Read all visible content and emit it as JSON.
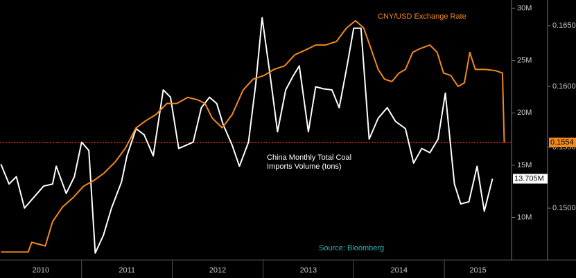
{
  "chart_data": {
    "type": "line",
    "source": "Source: Bloomberg",
    "xlim": [
      2010.1,
      2015.74
    ],
    "xticks": [
      2010,
      2011,
      2012,
      2013,
      2014,
      2015
    ],
    "ylim": [
      6,
      30.8
    ],
    "yticks": [
      {
        "value": 30,
        "label": "30M"
      },
      {
        "value": 25,
        "label": "25M"
      },
      {
        "value": 20,
        "label": "20M"
      },
      {
        "value": 15,
        "label": "15M"
      },
      {
        "value": 10,
        "label": "10M"
      }
    ],
    "y2lim": [
      0.1458,
      0.1671
    ],
    "y2ticks": [
      {
        "value": 0.165,
        "label": "0.1650"
      },
      {
        "value": 0.16,
        "label": "0.1600"
      },
      {
        "value": 0.155,
        "label": "0.1550"
      },
      {
        "value": 0.15,
        "label": "0.1500"
      }
    ],
    "series": [
      {
        "name": "China Monthly Total Coal Imports Volume (tons)",
        "color": "#ffffff",
        "axis": "y",
        "x": [
          2010.11,
          2010.2,
          2010.28,
          2010.37,
          2010.49,
          2010.58,
          2010.68,
          2010.72,
          2010.83,
          2010.92,
          2011.0,
          2011.08,
          2011.15,
          2011.24,
          2011.33,
          2011.44,
          2011.5,
          2011.6,
          2011.69,
          2011.79,
          2011.9,
          2011.98,
          2012.07,
          2012.15,
          2012.23,
          2012.32,
          2012.41,
          2012.49,
          2012.56,
          2012.66,
          2012.74,
          2012.84,
          2012.92,
          2012.99,
          2013.08,
          2013.16,
          2013.25,
          2013.33,
          2013.4,
          2013.5,
          2013.58,
          2013.67,
          2013.76,
          2013.84,
          2013.92,
          2014.0,
          2014.08,
          2014.17,
          2014.27,
          2014.37,
          2014.46,
          2014.57,
          2014.66,
          2014.75,
          2014.84,
          2014.93,
          2015.01,
          2015.11,
          2015.18,
          2015.27,
          2015.36,
          2015.44,
          2015.53
        ],
        "values": [
          15.1,
          13.2,
          13.9,
          10.9,
          12.1,
          13.0,
          13.2,
          14.9,
          12.3,
          13.9,
          17.2,
          16.4,
          6.6,
          8.3,
          10.9,
          13.4,
          15.9,
          18.5,
          17.9,
          15.9,
          22.2,
          21.5,
          16.6,
          16.9,
          17.2,
          20.5,
          21.5,
          20.9,
          18.9,
          16.9,
          14.9,
          17.2,
          22.8,
          29.1,
          23.5,
          18.2,
          22.2,
          23.5,
          24.5,
          18.2,
          22.5,
          22.3,
          22.2,
          20.5,
          24.2,
          28.1,
          28.1,
          17.5,
          19.5,
          20.5,
          19.2,
          18.5,
          15.2,
          16.6,
          16.2,
          17.5,
          21.9,
          13.2,
          11.3,
          11.5,
          14.9,
          10.6,
          13.705
        ]
      },
      {
        "name": "CNY/USD Exchange Rate",
        "color": "#f28a1e",
        "axis": "y2",
        "x": [
          2010.11,
          2010.41,
          2010.45,
          2010.6,
          2010.68,
          2010.79,
          2010.91,
          2011.02,
          2011.14,
          2011.25,
          2011.37,
          2011.48,
          2011.6,
          2011.71,
          2011.82,
          2011.94,
          2012.05,
          2012.17,
          2012.28,
          2012.36,
          2012.44,
          2012.55,
          2012.66,
          2012.78,
          2012.89,
          2013.01,
          2013.12,
          2013.24,
          2013.35,
          2013.47,
          2013.58,
          2013.69,
          2013.81,
          2013.92,
          2014.02,
          2014.11,
          2014.19,
          2014.27,
          2014.34,
          2014.42,
          2014.5,
          2014.57,
          2014.65,
          2014.73,
          2014.84,
          2014.92,
          2014.99,
          2015.07,
          2015.15,
          2015.22,
          2015.28,
          2015.34,
          2015.45,
          2015.56,
          2015.64,
          2015.66
        ],
        "values": [
          0.1464,
          0.1464,
          0.1472,
          0.1469,
          0.1489,
          0.1501,
          0.1509,
          0.1518,
          0.1523,
          0.1529,
          0.1538,
          0.1549,
          0.1566,
          0.1572,
          0.1577,
          0.1586,
          0.1586,
          0.1591,
          0.1589,
          0.1586,
          0.1574,
          0.1566,
          0.1577,
          0.1597,
          0.1606,
          0.1609,
          0.1614,
          0.1617,
          0.1626,
          0.163,
          0.1634,
          0.1634,
          0.1637,
          0.1648,
          0.1654,
          0.1648,
          0.1631,
          0.1614,
          0.1606,
          0.1604,
          0.1611,
          0.1614,
          0.1628,
          0.1631,
          0.1634,
          0.1628,
          0.1611,
          0.1609,
          0.16,
          0.1603,
          0.1628,
          0.1614,
          0.1614,
          0.1613,
          0.1611,
          0.1554
        ]
      }
    ],
    "annotations": [
      {
        "text": "13.705M",
        "value": 13.705,
        "axis": "y",
        "color": "#ffffff"
      },
      {
        "text": "0.1554",
        "value": 0.1554,
        "axis": "y2",
        "color": "#f28a1e"
      }
    ],
    "reference_line": {
      "value": 0.1554,
      "axis": "y2",
      "color": "#e02020"
    }
  }
}
